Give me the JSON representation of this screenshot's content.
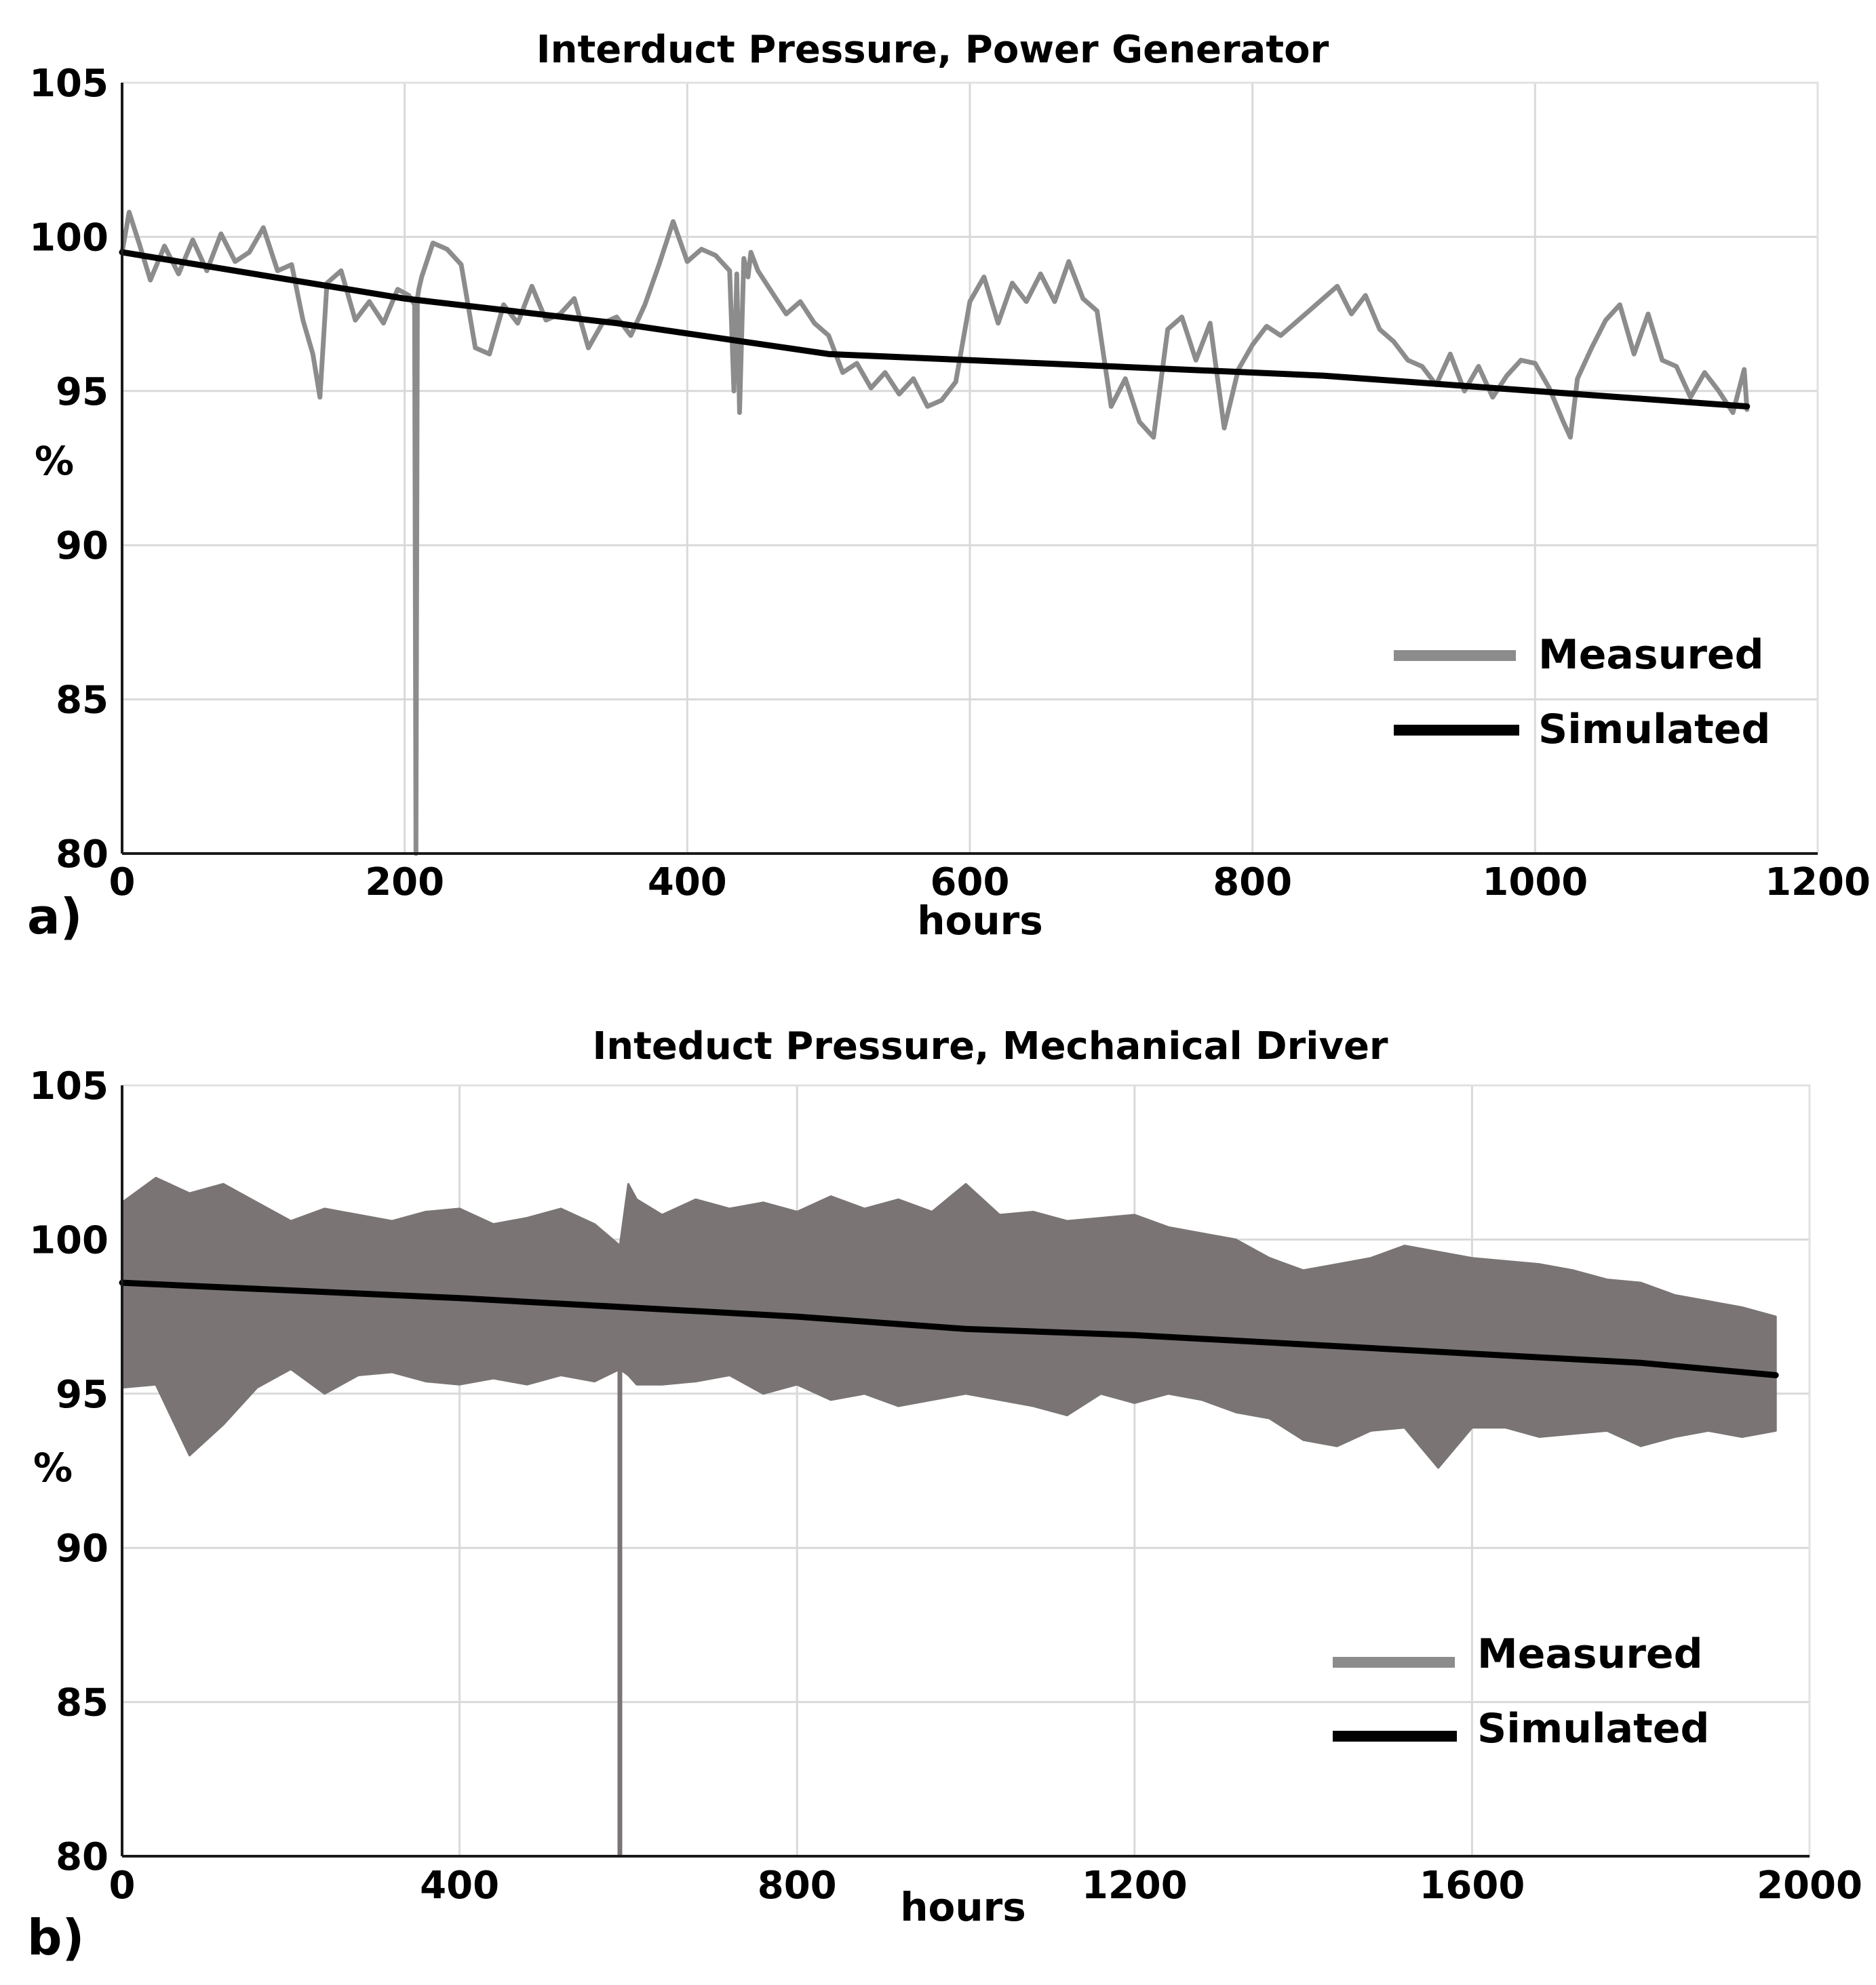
{
  "chart_data": [
    {
      "type": "line",
      "panel_label": "a)",
      "title": "Interduct Pressure, Power Generator",
      "xlabel": "hours",
      "ylabel": "%",
      "xlim": [
        0,
        1200
      ],
      "ylim": [
        80,
        105
      ],
      "x_ticks": [
        0,
        200,
        400,
        600,
        800,
        1000,
        1200
      ],
      "y_ticks": [
        80,
        85,
        90,
        95,
        100,
        105
      ],
      "grid": true,
      "legend": "bottom-right",
      "series": [
        {
          "name": "Measured",
          "color": "#8c8c8c",
          "x": [
            0,
            5,
            12,
            20,
            30,
            40,
            50,
            60,
            70,
            80,
            90,
            100,
            110,
            120,
            128,
            135,
            140,
            145,
            155,
            165,
            175,
            185,
            195,
            203,
            207,
            208,
            209,
            210,
            212,
            220,
            230,
            240,
            250,
            260,
            270,
            280,
            290,
            300,
            310,
            320,
            330,
            340,
            350,
            360,
            370,
            380,
            390,
            400,
            410,
            420,
            430,
            433,
            435,
            437,
            440,
            443,
            445,
            450,
            460,
            470,
            480,
            490,
            500,
            510,
            520,
            530,
            540,
            550,
            560,
            570,
            580,
            590,
            600,
            610,
            620,
            630,
            640,
            650,
            660,
            670,
            680,
            690,
            700,
            710,
            720,
            730,
            740,
            750,
            760,
            770,
            780,
            790,
            800,
            810,
            820,
            830,
            840,
            850,
            860,
            870,
            880,
            890,
            900,
            910,
            920,
            930,
            940,
            950,
            960,
            970,
            980,
            990,
            1000,
            1010,
            1020,
            1025,
            1030,
            1040,
            1050,
            1060,
            1070,
            1080,
            1090,
            1100,
            1110,
            1120,
            1130,
            1140,
            1148,
            1150
          ],
          "y": [
            99.5,
            100.8,
            99.8,
            98.6,
            99.7,
            98.8,
            99.9,
            98.9,
            100.1,
            99.2,
            99.5,
            100.3,
            98.9,
            99.1,
            97.3,
            96.2,
            94.8,
            98.5,
            98.9,
            97.3,
            97.9,
            97.2,
            98.3,
            98.1,
            97.8,
            80,
            98.0,
            98.3,
            98.7,
            99.8,
            99.6,
            99.1,
            96.4,
            96.2,
            97.8,
            97.2,
            98.4,
            97.3,
            97.5,
            98.0,
            96.4,
            97.2,
            97.4,
            96.8,
            97.8,
            99.1,
            100.5,
            99.2,
            99.6,
            99.4,
            98.9,
            95.0,
            98.8,
            94.3,
            99.3,
            98.7,
            99.5,
            98.9,
            98.2,
            97.5,
            97.9,
            97.2,
            96.8,
            95.6,
            95.9,
            95.1,
            95.6,
            94.9,
            95.4,
            94.5,
            94.7,
            95.3,
            97.9,
            98.7,
            97.2,
            98.5,
            97.9,
            98.8,
            97.9,
            99.2,
            98.0,
            97.6,
            94.5,
            95.4,
            94.0,
            93.5,
            97.0,
            97.4,
            96.0,
            97.2,
            93.8,
            95.7,
            96.5,
            97.1,
            96.8,
            97.2,
            97.6,
            98.0,
            98.4,
            97.5,
            98.1,
            97.0,
            96.6,
            96.0,
            95.8,
            95.2,
            96.2,
            95.0,
            95.8,
            94.8,
            95.5,
            96.0,
            95.9,
            95.1,
            94.0,
            93.5,
            95.4,
            96.4,
            97.3,
            97.8,
            96.2,
            97.5,
            96.0,
            95.8,
            94.8,
            95.6,
            95.0,
            94.3,
            95.7,
            94.4
          ]
        },
        {
          "name": "Simulated",
          "color": "#000000",
          "x": [
            0,
            200,
            350,
            500,
            600,
            700,
            850,
            1000,
            1150
          ],
          "y": [
            99.5,
            98.0,
            97.2,
            96.2,
            96.0,
            95.8,
            95.5,
            95.0,
            94.5
          ]
        }
      ]
    },
    {
      "type": "line",
      "panel_label": "b)",
      "title": "Inteduct Pressure, Mechanical Driver",
      "xlabel": "hours",
      "ylabel": "%",
      "xlim": [
        0,
        2000
      ],
      "ylim": [
        80,
        105
      ],
      "x_ticks": [
        0,
        400,
        800,
        1200,
        1600,
        2000
      ],
      "y_ticks": [
        80,
        85,
        90,
        95,
        100,
        105
      ],
      "grid": true,
      "legend": "bottom-right",
      "series": [
        {
          "name": "Measured",
          "color": "#7a7474",
          "band": true,
          "x": [
            0,
            40,
            80,
            120,
            160,
            200,
            240,
            280,
            320,
            360,
            400,
            440,
            480,
            520,
            560,
            590,
            600,
            610,
            640,
            680,
            720,
            760,
            800,
            840,
            880,
            920,
            960,
            1000,
            1040,
            1080,
            1120,
            1160,
            1200,
            1240,
            1280,
            1320,
            1360,
            1400,
            1440,
            1480,
            1520,
            1560,
            1600,
            1640,
            1680,
            1720,
            1760,
            1800,
            1840,
            1880,
            1920,
            1960
          ],
          "upper": [
            101.2,
            102.0,
            101.5,
            101.8,
            101.2,
            100.6,
            101.0,
            100.8,
            100.6,
            100.9,
            101.0,
            100.5,
            100.7,
            101.0,
            100.5,
            99.8,
            101.8,
            101.3,
            100.8,
            101.3,
            101.0,
            101.2,
            100.9,
            101.4,
            101.0,
            101.3,
            100.9,
            101.8,
            100.8,
            100.9,
            100.6,
            100.7,
            100.8,
            100.4,
            100.2,
            100.0,
            99.4,
            99.0,
            99.2,
            99.4,
            99.8,
            99.6,
            99.4,
            99.3,
            99.2,
            99.0,
            98.7,
            98.6,
            98.2,
            98.0,
            97.8,
            97.5
          ],
          "lower": [
            95.2,
            95.3,
            93.0,
            94.0,
            95.2,
            95.8,
            95.0,
            95.6,
            95.7,
            95.4,
            95.3,
            95.5,
            95.3,
            95.6,
            95.4,
            95.8,
            95.6,
            95.3,
            95.3,
            95.4,
            95.6,
            95.0,
            95.3,
            94.8,
            95.0,
            94.6,
            94.8,
            95.0,
            94.8,
            94.6,
            94.3,
            95.0,
            94.7,
            95.0,
            94.8,
            94.4,
            94.2,
            93.5,
            93.3,
            93.8,
            93.9,
            92.6,
            93.9,
            93.9,
            93.6,
            93.7,
            93.8,
            93.3,
            93.6,
            93.8,
            93.6,
            93.8
          ],
          "spike": {
            "x": 590,
            "y": 80
          }
        },
        {
          "name": "Simulated",
          "color": "#000000",
          "x": [
            0,
            400,
            600,
            800,
            900,
            1000,
            1200,
            1400,
            1600,
            1800,
            1960
          ],
          "y": [
            98.6,
            98.1,
            97.8,
            97.5,
            97.3,
            97.1,
            96.9,
            96.6,
            96.3,
            96.0,
            95.6
          ]
        }
      ]
    }
  ]
}
